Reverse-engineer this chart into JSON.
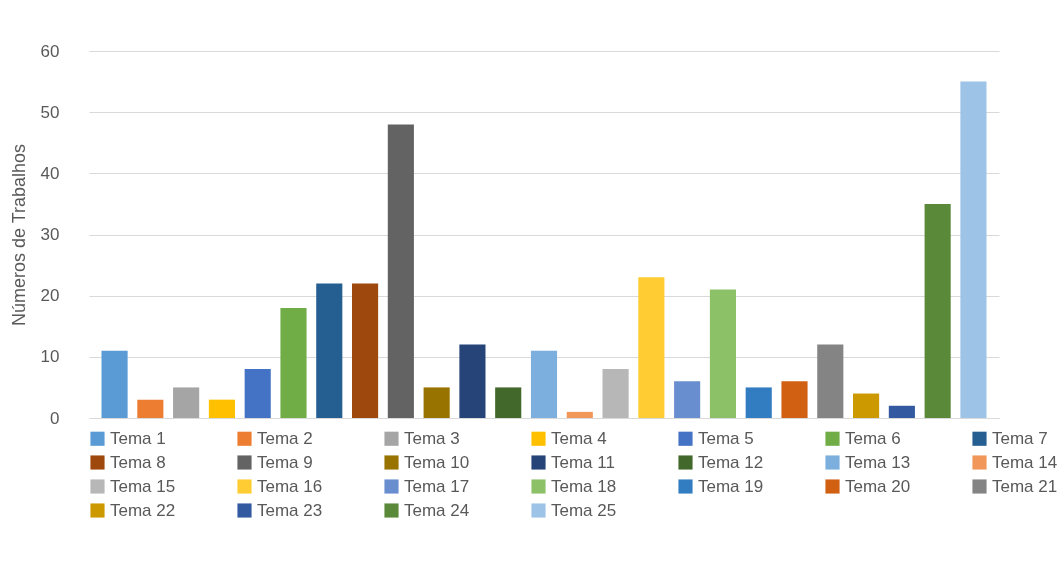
{
  "chart_data": {
    "type": "bar",
    "ylabel": "Números de Trabalhos",
    "categories": [
      null
    ],
    "ylim": [
      0,
      60
    ],
    "yticks": [
      0,
      10,
      20,
      30,
      40,
      50,
      60
    ],
    "grid": "y",
    "legend": "bottom",
    "series": [
      {
        "name": "Tema 1",
        "color": "#5b9bd5",
        "values": [
          11
        ]
      },
      {
        "name": "Tema 2",
        "color": "#ed7d31",
        "values": [
          3
        ]
      },
      {
        "name": "Tema 3",
        "color": "#a5a5a5",
        "values": [
          5
        ]
      },
      {
        "name": "Tema 4",
        "color": "#ffc000",
        "values": [
          3
        ]
      },
      {
        "name": "Tema 5",
        "color": "#4472c4",
        "values": [
          8
        ]
      },
      {
        "name": "Tema 6",
        "color": "#70ad47",
        "values": [
          18
        ]
      },
      {
        "name": "Tema 7",
        "color": "#255e91",
        "values": [
          22
        ]
      },
      {
        "name": "Tema 8",
        "color": "#9e480e",
        "values": [
          22
        ]
      },
      {
        "name": "Tema 9",
        "color": "#636363",
        "values": [
          48
        ]
      },
      {
        "name": "Tema 10",
        "color": "#997300",
        "values": [
          5
        ]
      },
      {
        "name": "Tema 11",
        "color": "#264478",
        "values": [
          12
        ]
      },
      {
        "name": "Tema 12",
        "color": "#43682b",
        "values": [
          5
        ]
      },
      {
        "name": "Tema 13",
        "color": "#7cafdd",
        "values": [
          11
        ]
      },
      {
        "name": "Tema 14",
        "color": "#f1975a",
        "values": [
          1
        ]
      },
      {
        "name": "Tema 15",
        "color": "#b7b7b7",
        "values": [
          8
        ]
      },
      {
        "name": "Tema 16",
        "color": "#ffcd33",
        "values": [
          23
        ]
      },
      {
        "name": "Tema 17",
        "color": "#698ed0",
        "values": [
          6
        ]
      },
      {
        "name": "Tema 18",
        "color": "#8cc168",
        "values": [
          21
        ]
      },
      {
        "name": "Tema 19",
        "color": "#327dc2",
        "values": [
          5
        ]
      },
      {
        "name": "Tema 20",
        "color": "#d26012",
        "values": [
          6
        ]
      },
      {
        "name": "Tema 21",
        "color": "#848484",
        "values": [
          12
        ]
      },
      {
        "name": "Tema 22",
        "color": "#cc9a00",
        "values": [
          4
        ]
      },
      {
        "name": "Tema 23",
        "color": "#335aa1",
        "values": [
          2
        ]
      },
      {
        "name": "Tema 24",
        "color": "#5a8a39",
        "values": [
          35
        ]
      },
      {
        "name": "Tema 25",
        "color": "#9dc3e6",
        "values": [
          55
        ]
      }
    ]
  }
}
